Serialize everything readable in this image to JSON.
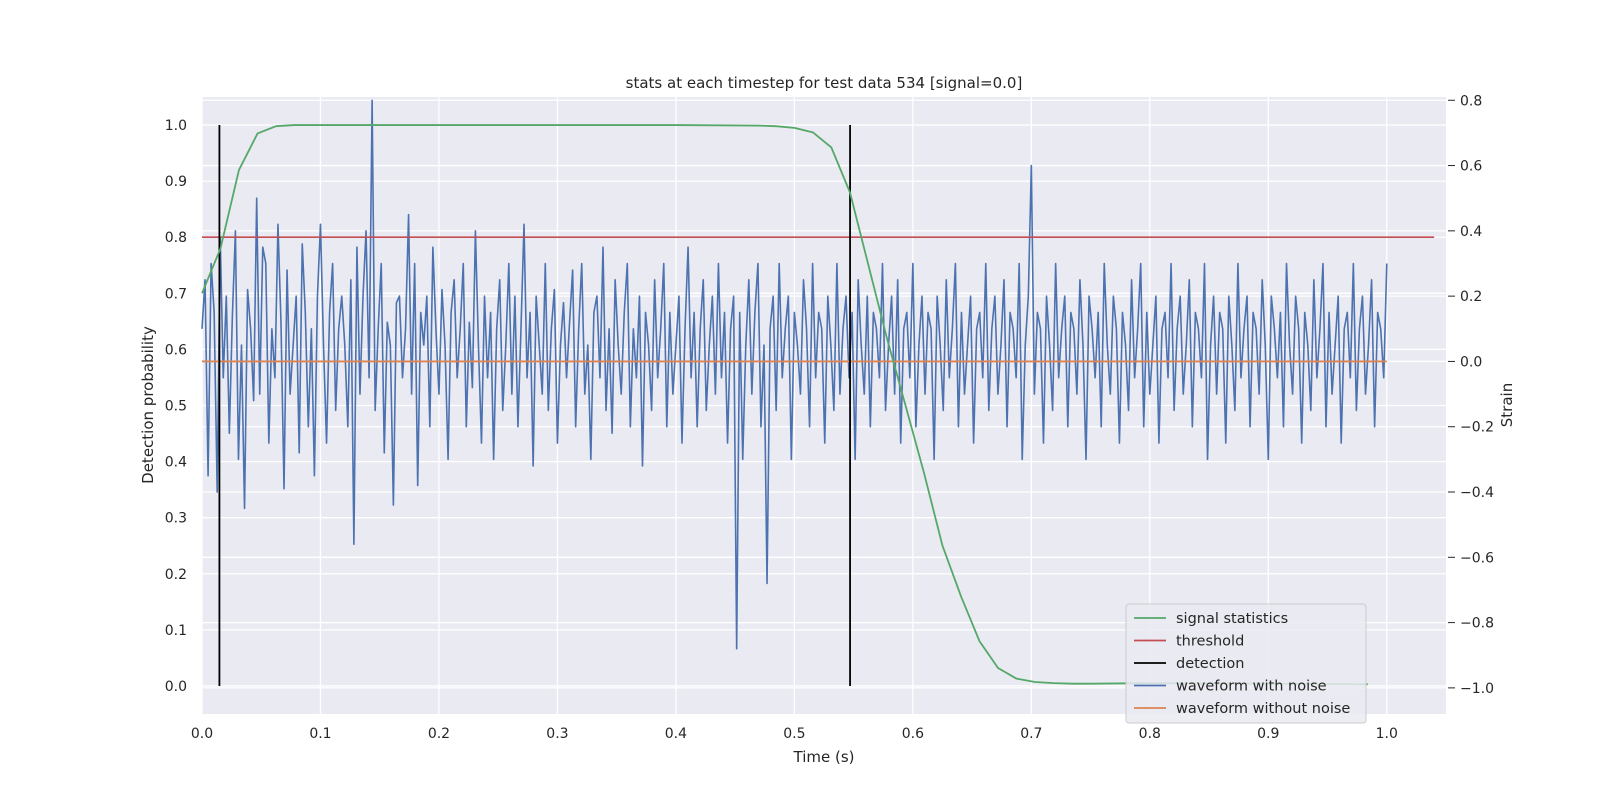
{
  "chart_data": {
    "type": "line",
    "title": "stats at each timestep for test data 534 [signal=0.0]",
    "xlabel": "Time (s)",
    "ylabel": "Detection probability",
    "y2label": "Strain",
    "xlim": [
      0.0,
      1.05
    ],
    "ylim": [
      -0.05,
      1.05
    ],
    "y2lim": [
      -1.08,
      0.81
    ],
    "xticks": [
      "0.0",
      "0.1",
      "0.2",
      "0.3",
      "0.4",
      "0.5",
      "0.6",
      "0.7",
      "0.8",
      "0.9",
      "1.0"
    ],
    "yticks": [
      "0.0",
      "0.1",
      "0.2",
      "0.3",
      "0.4",
      "0.5",
      "0.6",
      "0.7",
      "0.8",
      "0.9",
      "1.0"
    ],
    "y2ticks": [
      "−1.0",
      "−0.8",
      "−0.6",
      "−0.4",
      "−0.2",
      "0.0",
      "0.2",
      "0.4",
      "0.6",
      "0.8"
    ],
    "grid": true,
    "legend_position": "lower-right",
    "colors": {
      "signal": "#55a868",
      "threshold": "#c44e52",
      "detection": "#000000",
      "noisy": "#4c72b0",
      "clean": "#dd8452",
      "plot_bg": "#eaeaf2",
      "grid": "#ffffff"
    },
    "legend": [
      "signal statistics",
      "threshold",
      "detection",
      "waveform with noise",
      "waveform without noise"
    ],
    "series": [
      {
        "name": "signal statistics",
        "axis": "left",
        "x": [
          0.0,
          0.0156,
          0.0312,
          0.0469,
          0.0625,
          0.078,
          0.1,
          0.2,
          0.3,
          0.4,
          0.469,
          0.4844,
          0.5,
          0.5156,
          0.5312,
          0.5469,
          0.5625,
          0.5781,
          0.5938,
          0.6094,
          0.625,
          0.6406,
          0.6562,
          0.6719,
          0.6875,
          0.7031,
          0.7188,
          0.7344,
          0.75,
          0.8,
          0.9,
          0.984
        ],
        "y": [
          0.7,
          0.78,
          0.92,
          0.985,
          0.998,
          1.0,
          1.0,
          1.0,
          1.0,
          1.0,
          0.999,
          0.998,
          0.995,
          0.987,
          0.96,
          0.88,
          0.75,
          0.62,
          0.5,
          0.38,
          0.25,
          0.16,
          0.08,
          0.032,
          0.013,
          0.007,
          0.005,
          0.004,
          0.004,
          0.005,
          0.004,
          0.003
        ]
      },
      {
        "name": "threshold",
        "axis": "left",
        "x": [
          0.0,
          1.04
        ],
        "y": [
          0.8,
          0.8
        ]
      },
      {
        "name": "detection",
        "axis": "left",
        "vlines": [
          0.0147,
          0.547
        ],
        "ymin": 0.0,
        "ymax": 1.0
      },
      {
        "name": "waveform with noise",
        "axis": "right",
        "x_start": 0.0,
        "x_end": 1.0,
        "y": [
          0.1,
          0.25,
          -0.35,
          0.3,
          0.15,
          -0.4,
          0.38,
          -0.05,
          0.2,
          -0.22,
          0.14,
          0.4,
          -0.3,
          0.05,
          -0.45,
          0.22,
          0.1,
          -0.12,
          0.5,
          -0.1,
          0.35,
          0.3,
          -0.25,
          0.1,
          -0.05,
          0.42,
          0.12,
          -0.39,
          0.28,
          -0.1,
          0.05,
          0.2,
          -0.28,
          0.36,
          0.15,
          -0.2,
          0.1,
          -0.35,
          0.2,
          0.42,
          0.05,
          -0.25,
          0.15,
          0.3,
          -0.15,
          0.1,
          0.2,
          0.05,
          -0.2,
          0.25,
          -0.56,
          0.35,
          -0.1,
          0.2,
          0.4,
          -0.05,
          0.8,
          -0.15,
          0.1,
          0.3,
          -0.28,
          0.12,
          0.05,
          -0.44,
          0.18,
          0.2,
          -0.05,
          0.1,
          0.45,
          -0.1,
          0.3,
          -0.38,
          0.15,
          0.05,
          0.2,
          -0.2,
          0.35,
          0.1,
          -0.1,
          0.22,
          0.05,
          -0.3,
          0.15,
          0.25,
          -0.05,
          0.1,
          0.3,
          -0.2,
          0.12,
          -0.08,
          0.4,
          0.05,
          -0.25,
          0.2,
          -0.05,
          0.15,
          -0.3,
          0.1,
          0.25,
          -0.15,
          0.05,
          0.3,
          -0.1,
          0.2,
          -0.2,
          0.1,
          0.42,
          -0.05,
          0.15,
          -0.32,
          0.2,
          0.05,
          -0.1,
          0.3,
          -0.15,
          0.1,
          0.22,
          -0.25,
          0.05,
          0.18,
          -0.05,
          0.12,
          0.28,
          -0.2,
          0.1,
          0.3,
          -0.1,
          0.05,
          -0.3,
          0.15,
          0.2,
          -0.05,
          0.35,
          -0.15,
          0.1,
          -0.22,
          0.25,
          0.05,
          -0.1,
          0.15,
          0.3,
          -0.2,
          0.1,
          -0.05,
          0.2,
          -0.32,
          0.15,
          0.05,
          -0.15,
          0.25,
          -0.05,
          0.1,
          0.3,
          -0.2,
          0.15,
          -0.1,
          0.05,
          0.2,
          -0.25,
          0.1,
          0.35,
          -0.05,
          0.15,
          -0.2,
          0.1,
          0.25,
          -0.15,
          0.05,
          0.2,
          -0.1,
          0.3,
          -0.05,
          0.15,
          -0.25,
          0.1,
          0.2,
          -0.88,
          0.15,
          -0.3,
          0.05,
          0.25,
          -0.1,
          0.15,
          0.3,
          -0.2,
          0.05,
          -0.68,
          0.1,
          0.2,
          -0.15,
          0.3,
          -0.05,
          0.1,
          0.2,
          -0.3,
          0.15,
          0.05,
          -0.1,
          0.25,
          0.1,
          -0.2,
          0.3,
          -0.05,
          0.15,
          0.1,
          -0.25,
          0.2,
          0.05,
          -0.15,
          0.3,
          -0.1,
          0.1,
          0.2,
          -0.05,
          0.15,
          -0.3,
          0.25,
          0.05,
          -0.1,
          0.2,
          -0.2,
          0.15,
          0.1,
          -0.05,
          0.3,
          -0.15,
          0.05,
          0.2,
          -0.1,
          0.25,
          -0.25,
          0.1,
          0.15,
          -0.05,
          0.3,
          -0.2,
          0.05,
          0.2,
          -0.1,
          0.15,
          0.1,
          -0.3,
          0.2,
          0.05,
          -0.15,
          0.25,
          -0.05,
          0.1,
          0.3,
          -0.2,
          0.15,
          -0.1,
          0.05,
          0.2,
          -0.25,
          0.1,
          0.15,
          -0.05,
          0.3,
          -0.15,
          0.1,
          0.2,
          -0.1,
          0.05,
          0.25,
          -0.2,
          0.15,
          0.1,
          -0.05,
          0.3,
          -0.3,
          0.05,
          0.2,
          0.6,
          -0.1,
          0.15,
          0.1,
          -0.25,
          0.2,
          0.05,
          -0.15,
          0.3,
          -0.05,
          0.1,
          0.2,
          -0.2,
          0.15,
          0.1,
          -0.1,
          0.25,
          0.05,
          -0.3,
          0.2,
          0.1,
          -0.05,
          0.15,
          -0.2,
          0.3,
          0.05,
          -0.1,
          0.2,
          0.1,
          -0.25,
          0.15,
          0.05,
          -0.15,
          0.25,
          -0.05,
          0.1,
          0.3,
          -0.2,
          0.15,
          -0.1,
          0.05,
          0.2,
          -0.25,
          0.1,
          0.15,
          -0.05,
          0.3,
          -0.15,
          0.1,
          0.2,
          -0.1,
          0.05,
          0.25,
          -0.2,
          0.15,
          0.1,
          -0.05,
          0.3,
          -0.3,
          0.05,
          0.2,
          -0.1,
          0.15,
          0.1,
          -0.25,
          0.2,
          0.05,
          -0.15,
          0.3,
          -0.05,
          0.1,
          0.2,
          -0.2,
          0.15,
          0.1,
          -0.1,
          0.25,
          0.05,
          -0.3,
          0.2,
          0.1,
          -0.05,
          0.15,
          -0.2,
          0.3,
          0.05,
          -0.1,
          0.2,
          0.1,
          -0.25,
          0.15,
          0.05,
          -0.15,
          0.25,
          -0.05,
          0.1,
          0.3,
          -0.2,
          0.15,
          -0.1,
          0.05,
          0.2,
          -0.25,
          0.1,
          0.15,
          -0.05,
          0.3,
          -0.15,
          0.1,
          0.2,
          -0.1,
          0.05,
          0.25,
          -0.2,
          0.15,
          0.1,
          -0.05,
          0.3
        ]
      },
      {
        "name": "waveform without noise",
        "axis": "right",
        "x": [
          0.0,
          1.0
        ],
        "y": [
          0.0,
          0.0
        ]
      }
    ]
  }
}
